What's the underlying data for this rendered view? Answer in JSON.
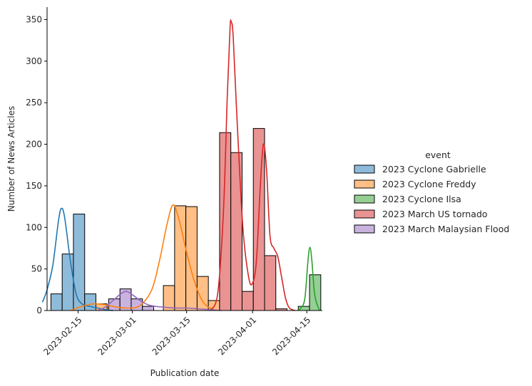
{
  "chart_data": {
    "type": "bar",
    "subtype": "stacked-histogram-with-kde",
    "xlabel": "Publication date",
    "ylabel": "Number of News Articles",
    "ylim": [
      0,
      365
    ],
    "yticks": [
      0,
      50,
      100,
      150,
      200,
      250,
      300,
      350
    ],
    "xlim": [
      "2023-02-07",
      "2023-04-19"
    ],
    "xticks": [
      "2023-02-15",
      "2023-03-01",
      "2023-03-15",
      "2023-04-01",
      "2023-04-15"
    ],
    "bin_width_days": 2.9,
    "bin_start": "2023-02-08",
    "legend": {
      "title": "event",
      "position": "center-right"
    },
    "series": [
      {
        "name": "2023 Cyclone Gabrielle",
        "color": "#1f77b4",
        "fill": "#8fbbda",
        "values": [
          20,
          68,
          116,
          20,
          7,
          3,
          2,
          0,
          0,
          0,
          0,
          0,
          0,
          0,
          0,
          0,
          0,
          0,
          0,
          0,
          0,
          0,
          0,
          0
        ],
        "kde": [
          [
            -1.2,
            10
          ],
          [
            0,
            25
          ],
          [
            1.5,
            55
          ],
          [
            3,
            110
          ],
          [
            3.8,
            123
          ],
          [
            4.6,
            110
          ],
          [
            6,
            60
          ],
          [
            7.5,
            20
          ],
          [
            9,
            8
          ],
          [
            11,
            5
          ],
          [
            13,
            3
          ],
          [
            15,
            1
          ],
          [
            17,
            0
          ]
        ]
      },
      {
        "name": "2023 Cyclone Freddy",
        "color": "#ff7f0e",
        "fill": "#ffbf86",
        "values": [
          0,
          0,
          0,
          0,
          8,
          6,
          0,
          0,
          0,
          0,
          30,
          126,
          125,
          41,
          12,
          0,
          0,
          0,
          0,
          0,
          0,
          0,
          0,
          0
        ],
        "kde": [
          [
            6,
            0
          ],
          [
            9,
            5
          ],
          [
            12,
            8
          ],
          [
            15,
            7
          ],
          [
            18,
            4
          ],
          [
            21,
            3
          ],
          [
            24,
            6
          ],
          [
            27,
            25
          ],
          [
            29,
            60
          ],
          [
            31,
            105
          ],
          [
            32.5,
            127
          ],
          [
            34,
            110
          ],
          [
            36,
            70
          ],
          [
            38,
            35
          ],
          [
            40,
            12
          ],
          [
            42,
            3
          ],
          [
            44,
            0
          ]
        ]
      },
      {
        "name": "2023 Cyclone Ilsa",
        "color": "#2ca02c",
        "fill": "#95cf95",
        "values": [
          0,
          0,
          0,
          0,
          0,
          0,
          0,
          0,
          0,
          0,
          0,
          0,
          0,
          0,
          0,
          0,
          0,
          0,
          0,
          0,
          0,
          0,
          5,
          43
        ],
        "kde": [
          [
            64.5,
            0
          ],
          [
            65.5,
            3
          ],
          [
            66.5,
            15
          ],
          [
            67.3,
            60
          ],
          [
            67.8,
            76
          ],
          [
            68.3,
            60
          ],
          [
            69,
            20
          ],
          [
            70,
            3
          ],
          [
            70.6,
            0
          ]
        ]
      },
      {
        "name": "2023 March US tornado",
        "color": "#d62728",
        "fill": "#ea9393",
        "values": [
          0,
          0,
          0,
          0,
          0,
          0,
          0,
          0,
          0,
          0,
          0,
          0,
          0,
          0,
          0,
          214,
          190,
          23,
          219,
          66,
          2,
          0,
          0,
          0
        ],
        "kde": [
          [
            42,
            0
          ],
          [
            44,
            20
          ],
          [
            45.5,
            120
          ],
          [
            46.5,
            260
          ],
          [
            47.2,
            340
          ],
          [
            47.5,
            347
          ],
          [
            48,
            330
          ],
          [
            49,
            230
          ],
          [
            50.5,
            100
          ],
          [
            52,
            40
          ],
          [
            53,
            33
          ],
          [
            54,
            60
          ],
          [
            55,
            150
          ],
          [
            55.8,
            200
          ],
          [
            56.6,
            170
          ],
          [
            57.5,
            90
          ],
          [
            58.5,
            75
          ],
          [
            59.5,
            65
          ],
          [
            60.5,
            40
          ],
          [
            61.5,
            15
          ],
          [
            62.5,
            3
          ],
          [
            64,
            0
          ]
        ]
      },
      {
        "name": "2023 March Malaysian Flood",
        "color": "#9467bd",
        "fill": "#c9b3de",
        "values": [
          0,
          0,
          0,
          0,
          0,
          0,
          0,
          0,
          0,
          0,
          0,
          0,
          0,
          0,
          0,
          0,
          0,
          0,
          0,
          0,
          0,
          0,
          0,
          0
        ],
        "stacked_bins": [
          [
            15.9,
            14
          ],
          [
            18.8,
            26
          ],
          [
            21.7,
            14
          ],
          [
            24.6,
            5
          ]
        ],
        "kde": [
          [
            13,
            0
          ],
          [
            15,
            4
          ],
          [
            17,
            12
          ],
          [
            19,
            20
          ],
          [
            20.5,
            23
          ],
          [
            22,
            19
          ],
          [
            24,
            12
          ],
          [
            26,
            7
          ],
          [
            28,
            5
          ],
          [
            30,
            4
          ],
          [
            33,
            3
          ],
          [
            36,
            3
          ],
          [
            39,
            2
          ],
          [
            42,
            1
          ],
          [
            45,
            0
          ]
        ]
      }
    ]
  }
}
